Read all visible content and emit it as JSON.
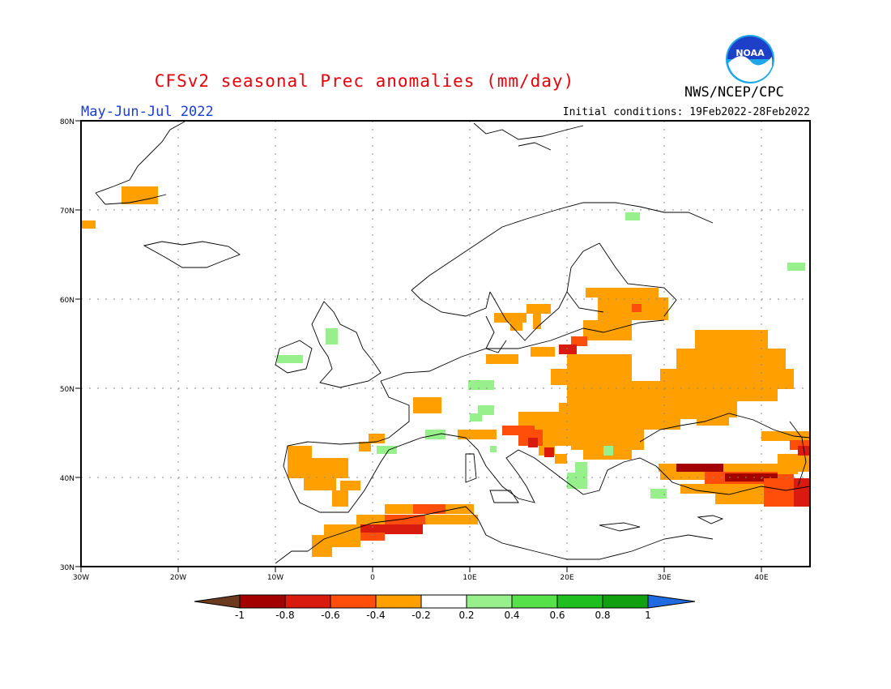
{
  "title": "CFSv2 seasonal Prec anomalies (mm/day)",
  "period": "May-Jun-Jul 2022",
  "initial_conditions": "Initial conditions: 19Feb2022-28Feb2022",
  "agency": "NWS/NCEP/CPC",
  "logo_text": "NOAA",
  "lat_labels": [
    "80N",
    "70N",
    "60N",
    "50N",
    "40N",
    "30N"
  ],
  "lon_labels": [
    "30W",
    "20W",
    "10W",
    "0",
    "10E",
    "20E",
    "30E",
    "40E"
  ],
  "colorbar": {
    "labels": [
      "-1",
      "-0.8",
      "-0.6",
      "-0.4",
      "-0.2",
      "0.2",
      "0.4",
      "0.6",
      "0.8",
      "1"
    ],
    "colors": [
      "#6b3a1e",
      "#a30000",
      "#d91a0f",
      "#ff4d0a",
      "#ffa000",
      "#ffffff",
      "#98f08c",
      "#56e04a",
      "#1fbf1f",
      "#10a010",
      "#1f6ae0"
    ]
  },
  "colors": {
    "title": "#e8000b",
    "period": "#1a3bd6",
    "deficit_light": "#ffa000",
    "deficit_mid": "#ff4d0a",
    "deficit_strong": "#d91a0f",
    "deficit_severe": "#a30000",
    "wet_light": "#98f08c"
  }
}
